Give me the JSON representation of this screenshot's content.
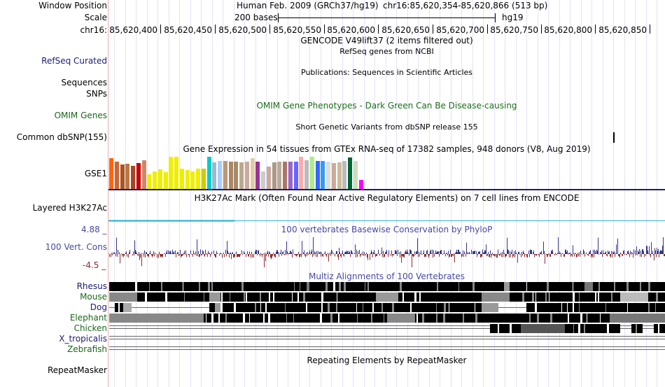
{
  "ruler": {
    "window_position_label": "Window Position",
    "scale_label": "Scale",
    "chrom_label": "chr16:",
    "assembly": "Human Feb. 2009 (GRCh37/hg19)",
    "position": "chr16:85,620,354-85,620,866 (513 bp)",
    "scale_text": "200 bases",
    "scale_db": "hg19",
    "ticks": [
      "85,620,400",
      "85,620,450",
      "85,620,500",
      "85,620,550",
      "85,620,600",
      "85,620,650",
      "85,620,700",
      "85,620,750",
      "85,620,800",
      "85,620,850"
    ]
  },
  "tracks": {
    "gencode_title": "GENCODE V49lift37 (2 items filtered out)",
    "refseq_label": "RefSeq Curated",
    "refseq_title": "RefSeq genes from NCBI",
    "sequences_label": "Sequences",
    "publications_title": "Publications: Sequences in Scientific Articles",
    "snps_label": "SNPs",
    "omim_label": "OMIM Genes",
    "omim_title": "OMIM Gene Phenotypes - Dark Green Can Be Disease-causing",
    "dbsnp_label": "Common dbSNP(155)",
    "dbsnp_title": "Short Genetic Variants from dbSNP release 155",
    "gtex_title": "Gene Expression in 54 tissues from GTEx RNA-seq of 17382 samples, 948 donors (V8, Aug 2019)",
    "gse_label": "GSE1",
    "h3k27ac_label": "Layered H3K27Ac",
    "h3k27ac_title": "H3K27Ac Mark (Often Found Near Active Regulatory Elements) on 7 cell lines from ENCODE",
    "cons_label": "100 Vert. Cons",
    "cons_max": "4.88 _",
    "cons_min": "-4.5 _",
    "cons_title": "100 vertebrates Basewise Conservation by PhyloP",
    "multiz_title": "Multiz Alignments of 100 Vertebrates",
    "species": [
      "Rhesus",
      "Mouse",
      "Dog",
      "Elephant",
      "Chicken",
      "X_tropicalis",
      "Zebrafish"
    ],
    "repeatmasker_label": "RepeatMasker",
    "repeatmasker_title": "Repeating Elements by RepeatMasker"
  },
  "gtex_expression": [
    {
      "color": "#ff6600",
      "level": 0.95
    },
    {
      "color": "#cc6633",
      "level": 0.85
    },
    {
      "color": "#aa5522",
      "level": 0.75
    },
    {
      "color": "#bb7744",
      "level": 0.78
    },
    {
      "color": "#aa4422",
      "level": 0.72
    },
    {
      "color": "#cc0000",
      "level": 0.8
    },
    {
      "color": "#cc8866",
      "level": 0.9
    },
    {
      "color": "#eeee00",
      "level": 0.45
    },
    {
      "color": "#eeee00",
      "level": 0.55
    },
    {
      "color": "#eeee00",
      "level": 0.6
    },
    {
      "color": "#eeee00",
      "level": 0.52
    },
    {
      "color": "#eeee00",
      "level": 1.0
    },
    {
      "color": "#eeee00",
      "level": 1.0
    },
    {
      "color": "#eeee00",
      "level": 0.62
    },
    {
      "color": "#eeee00",
      "level": 0.58
    },
    {
      "color": "#eeee00",
      "level": 0.55
    },
    {
      "color": "#eeee00",
      "level": 0.62
    },
    {
      "color": "#cccc00",
      "level": 0.62
    },
    {
      "color": "#00cccc",
      "level": 1.0
    },
    {
      "color": "#99bbcc",
      "level": 0.82
    },
    {
      "color": "#aaccff",
      "level": 0.88
    },
    {
      "color": "#bb9977",
      "level": 0.88
    },
    {
      "color": "#aa8866",
      "level": 0.85
    },
    {
      "color": "#aa8866",
      "level": 0.85
    },
    {
      "color": "#bbaa88",
      "level": 0.82
    },
    {
      "color": "#ccaa99",
      "level": 0.85
    },
    {
      "color": "#ddccaa",
      "level": 0.95
    },
    {
      "color": "#993399",
      "level": 0.85
    },
    {
      "color": "#cccccc",
      "level": 0.55
    },
    {
      "color": "#ccaa99",
      "level": 0.7
    },
    {
      "color": "#aa9988",
      "level": 0.82
    },
    {
      "color": "#bbaa99",
      "level": 0.85
    },
    {
      "color": "#aa7766",
      "level": 0.85
    },
    {
      "color": "#9966cc",
      "level": 0.85
    },
    {
      "color": "#6666ff",
      "level": 0.85
    },
    {
      "color": "#ffaaaa",
      "level": 1.0
    },
    {
      "color": "#bbbbbb",
      "level": 0.9
    },
    {
      "color": "#aaee88",
      "level": 1.0
    },
    {
      "color": "#3366ff",
      "level": 0.88
    },
    {
      "color": "#3399ff",
      "level": 0.88
    },
    {
      "color": "#dddddd",
      "level": 0.85
    },
    {
      "color": "#ccaa99",
      "level": 0.8
    },
    {
      "color": "#ccbb99",
      "level": 0.82
    },
    {
      "color": "#bbbbbb",
      "level": 0.88
    },
    {
      "color": "#006633",
      "level": 0.98
    },
    {
      "color": "#ccddbb",
      "level": 0.88
    },
    {
      "color": "#ff00ff",
      "level": 0.28
    }
  ],
  "colors": {
    "label_blue": "#1c1c6e",
    "label_green": "#1a661a",
    "omim_green": "#1a6e1a",
    "cons_blue": "#4848a0",
    "cons_pos": "#343486",
    "cons_neg": "#8a2d2d",
    "h3k27ac": "#2bb3d4",
    "gse_line": "#1c1c6e",
    "red_divider": "#cc3333"
  },
  "multiz": [
    {
      "species": "Rhesus",
      "segments": [
        [
          0,
          1,
          "#000"
        ],
        [
          0.355,
          0.36,
          "#777"
        ],
        [
          0.71,
          0.72,
          "#999"
        ],
        [
          0.855,
          0.87,
          "#777"
        ]
      ]
    },
    {
      "species": "Mouse",
      "segments": [
        [
          0,
          0.05,
          "#888"
        ],
        [
          0.05,
          0.18,
          "#000"
        ],
        [
          0.18,
          0.2,
          "#999"
        ],
        [
          0.2,
          0.48,
          "#000"
        ],
        [
          0.48,
          0.52,
          "#999"
        ],
        [
          0.52,
          0.67,
          "#000"
        ],
        [
          0.67,
          0.72,
          "#888"
        ],
        [
          0.72,
          0.92,
          "#000"
        ],
        [
          0.92,
          0.97,
          "#bbb"
        ],
        [
          0.97,
          1,
          "#000"
        ]
      ]
    },
    {
      "species": "Dog",
      "segments": [
        [
          0.01,
          0.025,
          "#000"
        ],
        [
          0.025,
          0.04,
          "#aaa"
        ],
        [
          0.18,
          0.19,
          "#000"
        ],
        [
          0.19,
          0.2,
          "#999"
        ],
        [
          0.2,
          0.67,
          "#000"
        ],
        [
          0.67,
          0.7,
          "#999"
        ],
        [
          0.75,
          1,
          "#000"
        ]
      ]
    },
    {
      "species": "Elephant",
      "segments": [
        [
          0,
          0.17,
          "#888"
        ],
        [
          0.17,
          0.5,
          "#000"
        ],
        [
          0.5,
          0.55,
          "#888"
        ],
        [
          0.55,
          0.9,
          "#000"
        ],
        [
          0.9,
          1,
          "#777"
        ]
      ]
    },
    {
      "species": "Chicken",
      "segments": [
        [
          0.685,
          0.74,
          "#000"
        ],
        [
          0.74,
          0.82,
          "#555"
        ],
        [
          0.82,
          0.92,
          "#000"
        ],
        [
          0.94,
          0.96,
          "#000"
        ],
        [
          0.98,
          1,
          "#000"
        ]
      ]
    },
    {
      "species": "X_tropicalis",
      "segments": []
    },
    {
      "species": "Zebrafish",
      "segments": []
    }
  ]
}
